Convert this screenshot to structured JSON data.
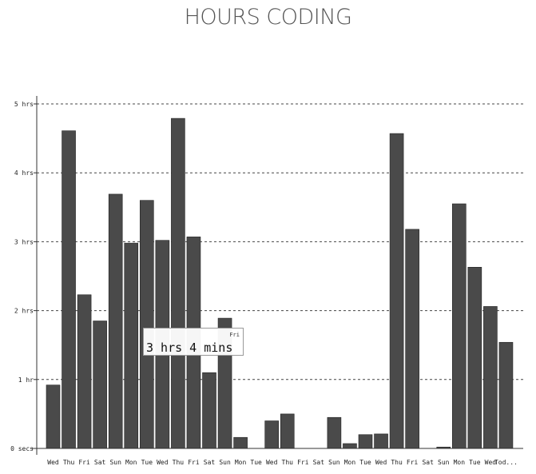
{
  "chart_data": {
    "type": "bar",
    "title": "HOURS CODING",
    "xlabel": "",
    "ylabel": "",
    "ylim": [
      0,
      5
    ],
    "y_ticks": [
      {
        "value": 0,
        "label": "0 secs"
      },
      {
        "value": 1,
        "label": "1 hr"
      },
      {
        "value": 2,
        "label": "2 hrs"
      },
      {
        "value": 3,
        "label": "3 hrs"
      },
      {
        "value": 4,
        "label": "4 hrs"
      },
      {
        "value": 5,
        "label": "5 hrs"
      }
    ],
    "grid": true,
    "categories": [
      "Wed",
      "Thu",
      "Fri",
      "Sat",
      "Sun",
      "Mon",
      "Tue",
      "Wed",
      "Thu",
      "Fri",
      "Sat",
      "Sun",
      "Mon",
      "Tue",
      "Wed",
      "Thu",
      "Fri",
      "Sat",
      "Sun",
      "Mon",
      "Tue",
      "Wed",
      "Thu",
      "Fri",
      "Sat",
      "Sun",
      "Mon",
      "Tue",
      "Wed",
      "Tod..."
    ],
    "values": [
      0.92,
      4.61,
      2.23,
      1.85,
      3.69,
      2.98,
      3.6,
      3.02,
      4.79,
      3.07,
      1.1,
      1.89,
      0.16,
      0.0,
      0.4,
      0.5,
      0.0,
      0.0,
      0.45,
      0.07,
      0.2,
      0.21,
      4.57,
      3.18,
      0.0,
      0.02,
      3.55,
      2.63,
      2.06,
      1.54
    ],
    "bar_color": "#4a4a4a",
    "tooltip": {
      "category": "Fri",
      "value_text": "3 hrs 4 mins"
    }
  }
}
